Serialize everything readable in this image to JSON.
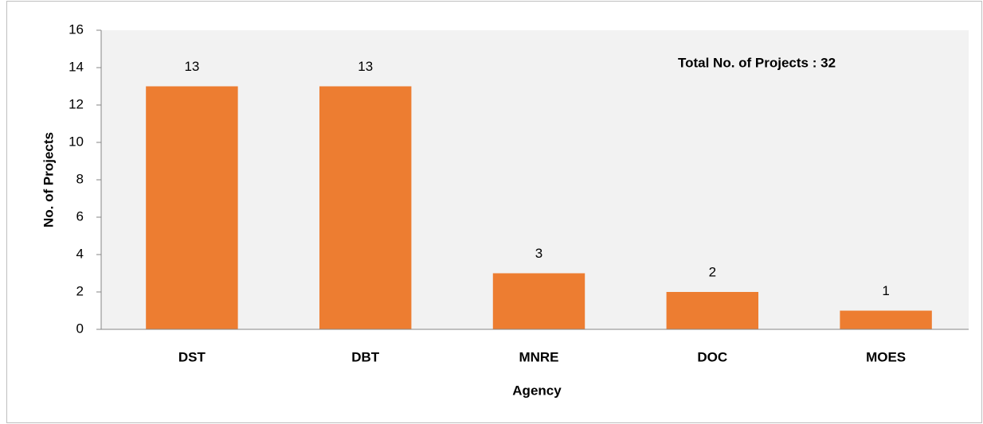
{
  "chart_data": {
    "type": "bar",
    "categories": [
      "DST",
      "DBT",
      "MNRE",
      "DOC",
      "MOES"
    ],
    "values": [
      13,
      13,
      3,
      2,
      1
    ],
    "color": "#ed7d31",
    "ylim": [
      0,
      16
    ],
    "yticks": [
      0,
      2,
      4,
      6,
      8,
      10,
      12,
      14,
      16
    ],
    "xlabel": "Agency",
    "ylabel": "No. of Projects",
    "annotation": "Total No. of Projects : 32",
    "background": "#f2f2f2"
  }
}
